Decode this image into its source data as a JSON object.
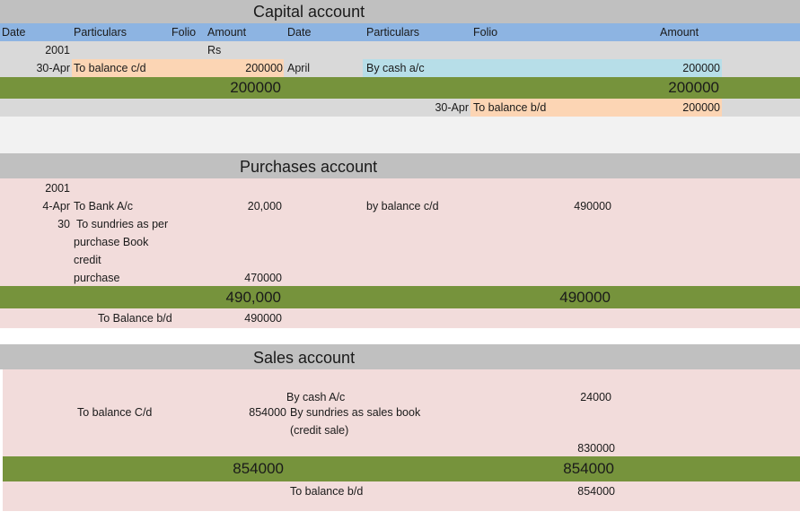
{
  "capital": {
    "title": "Capital account",
    "headers": [
      "Date",
      "Particulars",
      "Folio",
      "Amount",
      "Date",
      "Particulars",
      "Folio",
      "Amount"
    ],
    "year": "2001",
    "currency": "Rs",
    "debit_date": "30-Apr",
    "debit_particulars": "To balance  c/d",
    "debit_amount": "200000",
    "credit_date": "April",
    "credit_particulars": "By cash  a/c",
    "credit_amount": "200000",
    "total_left": "200000",
    "total_right": "200000",
    "bd_date": "30-Apr",
    "bd_particulars": "To balance  b/d",
    "bd_amount": "200000"
  },
  "purchases": {
    "title": "Purchases account",
    "year": "2001",
    "row1_date": "4-Apr",
    "row1_particulars": "To Bank A/c",
    "row1_amount": "20,000",
    "credit_particulars": "by balance c/d",
    "credit_amount": "490000",
    "row2_date": "30",
    "row2_lines": [
      "To sundries as per",
      "purchase Book",
      "credit",
      "purchase"
    ],
    "row2_amount": "470000",
    "total_left": "490,000",
    "total_right": "490000",
    "bd_particulars": "To Balance b/d",
    "bd_amount": "490000"
  },
  "sales": {
    "title": "Sales account",
    "credit1_particulars": "By cash A/c",
    "credit1_amount": "24000",
    "debit_particulars": "To balance C/d",
    "debit_amount": "854000",
    "credit2_lines": [
      "By sundries as sales book",
      "(credit sale)"
    ],
    "credit2_amount": "830000",
    "total_left": "854000",
    "total_right": "854000",
    "bd_particulars": "To balance b/d",
    "bd_amount": "854000"
  }
}
